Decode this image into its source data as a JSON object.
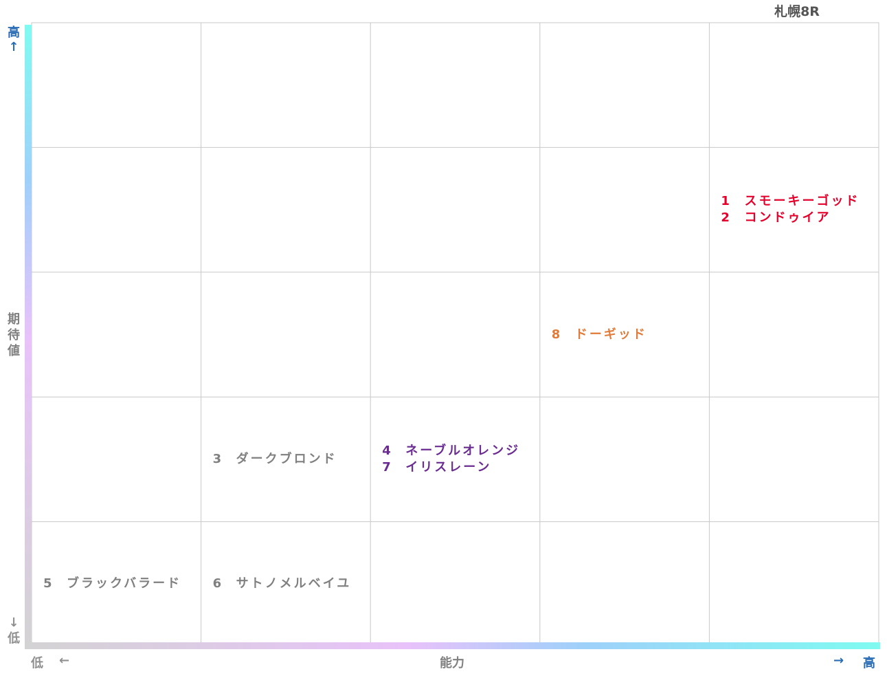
{
  "title": "札幌8R",
  "y_axis": {
    "label_chars": [
      "期",
      "待",
      "値"
    ],
    "high": "高",
    "high_arrow": "↑",
    "low_arrow": "↓",
    "low": "低"
  },
  "x_axis": {
    "label": "能力",
    "low": "低",
    "low_arrow": "←",
    "high_arrow": "→",
    "high": "高"
  },
  "colors": {
    "grid": "#c8c8c8",
    "red": "#e4002b",
    "orange": "#e07b39",
    "purple": "#6a2c91",
    "gray": "#808080",
    "axis_blue": "#2a6db5",
    "axis_gray": "#909090"
  },
  "chart_data": {
    "type": "scatter",
    "title": "札幌8R",
    "xlabel": "能力",
    "ylabel": "期待値",
    "grid": true,
    "x_bins": 5,
    "y_bins": 5,
    "points": [
      {
        "number": "1",
        "name": "スモーキーゴッド",
        "x": 5,
        "y": 4,
        "color": "red"
      },
      {
        "number": "2",
        "name": "コンドゥイア",
        "x": 5,
        "y": 4,
        "color": "red"
      },
      {
        "number": "8",
        "name": "ドーギッド",
        "x": 4,
        "y": 3,
        "color": "orange"
      },
      {
        "number": "3",
        "name": "ダークブロンド",
        "x": 2,
        "y": 2,
        "color": "gray"
      },
      {
        "number": "4",
        "name": "ネーブルオレンジ",
        "x": 3,
        "y": 2,
        "color": "purple"
      },
      {
        "number": "7",
        "name": "イリスレーン",
        "x": 3,
        "y": 2,
        "color": "purple"
      },
      {
        "number": "5",
        "name": "ブラックバラード",
        "x": 1,
        "y": 1,
        "color": "gray"
      },
      {
        "number": "6",
        "name": "サトノメルベイユ",
        "x": 2,
        "y": 1,
        "color": "gray"
      }
    ]
  }
}
